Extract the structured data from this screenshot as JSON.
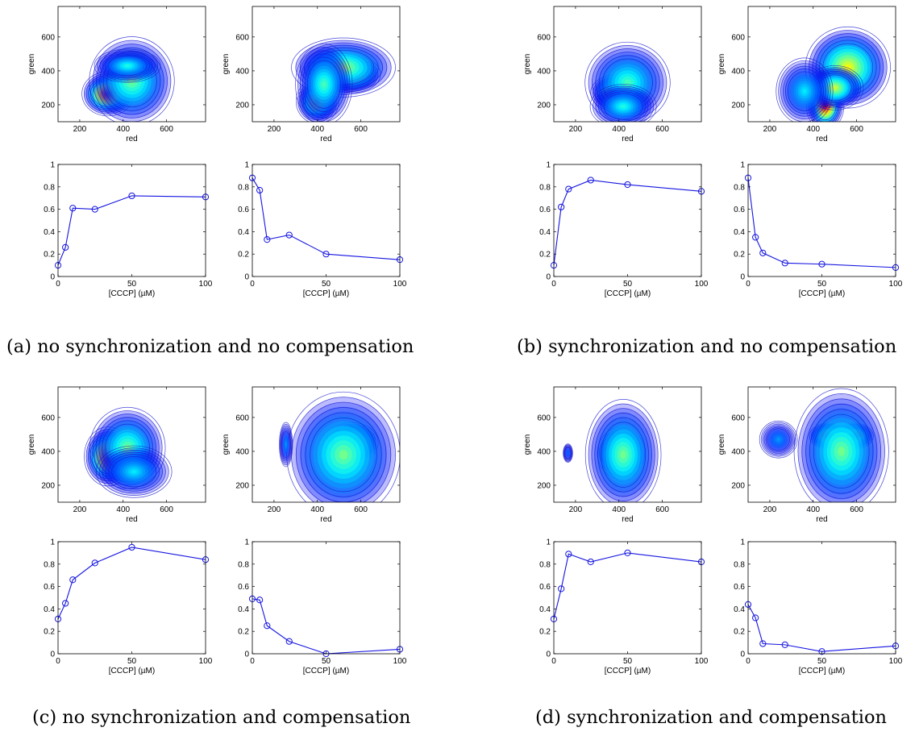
{
  "chart_data": [
    {
      "caption": "(a) no synchronization and no compensation",
      "panels": [
        {
          "type": "heatmap",
          "xlabel": "red",
          "ylabel": "green",
          "xticks": [
            200,
            400,
            600
          ],
          "yticks": [
            200,
            400,
            600
          ],
          "xlim": [
            100,
            780
          ],
          "ylim": [
            100,
            780
          ],
          "blobs": [
            {
              "x": 330,
              "y": 265,
              "sx": 55,
              "sy": 60,
              "a": 1.0
            },
            {
              "x": 440,
              "y": 340,
              "sx": 90,
              "sy": 120,
              "a": 0.45
            },
            {
              "x": 420,
              "y": 430,
              "sx": 70,
              "sy": 45,
              "a": 0.35
            }
          ]
        },
        {
          "type": "heatmap",
          "xlabel": "red",
          "ylabel": "green",
          "xticks": [
            200,
            400,
            600
          ],
          "yticks": [
            200,
            400,
            600
          ],
          "xlim": [
            100,
            780
          ],
          "ylim": [
            100,
            780
          ],
          "blobs": [
            {
              "x": 560,
              "y": 380,
              "sx": 60,
              "sy": 50,
              "a": 1.0
            },
            {
              "x": 400,
              "y": 220,
              "sx": 45,
              "sy": 60,
              "a": 0.75
            },
            {
              "x": 520,
              "y": 420,
              "sx": 110,
              "sy": 80,
              "a": 0.5
            },
            {
              "x": 430,
              "y": 320,
              "sx": 60,
              "sy": 110,
              "a": 0.4
            }
          ]
        },
        {
          "type": "line",
          "xlabel": "[CCCP] (µM)",
          "ylabel": "",
          "xticks": [
            0,
            50,
            100
          ],
          "yticks": [
            0,
            0.2,
            0.4,
            0.6,
            0.8,
            1
          ],
          "xlim": [
            0,
            100
          ],
          "ylim": [
            0,
            1
          ],
          "x": [
            0,
            5,
            10,
            25,
            50,
            100
          ],
          "y": [
            0.1,
            0.26,
            0.61,
            0.6,
            0.72,
            0.71
          ]
        },
        {
          "type": "line",
          "xlabel": "[CCCP] (µM)",
          "ylabel": "",
          "xticks": [
            0,
            50,
            100
          ],
          "yticks": [
            0,
            0.2,
            0.4,
            0.6,
            0.8,
            1
          ],
          "xlim": [
            0,
            100
          ],
          "ylim": [
            0,
            1
          ],
          "x": [
            0,
            5,
            10,
            25,
            50,
            100
          ],
          "y": [
            0.88,
            0.77,
            0.33,
            0.37,
            0.2,
            0.15
          ]
        }
      ]
    },
    {
      "caption": "(b) synchronization and no compensation",
      "panels": [
        {
          "type": "heatmap",
          "xlabel": "red",
          "ylabel": "green",
          "xticks": [
            200,
            400,
            600
          ],
          "yticks": [
            200,
            400,
            600
          ],
          "xlim": [
            100,
            780
          ],
          "ylim": [
            100,
            780
          ],
          "blobs": [
            {
              "x": 390,
              "y": 270,
              "sx": 55,
              "sy": 50,
              "a": 1.0
            },
            {
              "x": 440,
              "y": 330,
              "sx": 90,
              "sy": 110,
              "a": 0.4
            },
            {
              "x": 420,
              "y": 190,
              "sx": 70,
              "sy": 60,
              "a": 0.35
            }
          ]
        },
        {
          "type": "heatmap",
          "xlabel": "red",
          "ylabel": "green",
          "xticks": [
            200,
            400,
            600
          ],
          "yticks": [
            200,
            400,
            600
          ],
          "xlim": [
            100,
            780
          ],
          "ylim": [
            100,
            780
          ],
          "blobs": [
            {
              "x": 455,
              "y": 200,
              "sx": 40,
              "sy": 70,
              "a": 1.0
            },
            {
              "x": 560,
              "y": 420,
              "sx": 90,
              "sy": 110,
              "a": 0.6
            },
            {
              "x": 500,
              "y": 300,
              "sx": 60,
              "sy": 60,
              "a": 0.55
            },
            {
              "x": 360,
              "y": 280,
              "sx": 60,
              "sy": 90,
              "a": 0.3
            }
          ]
        },
        {
          "type": "line",
          "xlabel": "[CCCP] (µM)",
          "ylabel": "",
          "xticks": [
            0,
            50,
            100
          ],
          "yticks": [
            0,
            0.2,
            0.4,
            0.6,
            0.8,
            1
          ],
          "xlim": [
            0,
            100
          ],
          "ylim": [
            0,
            1
          ],
          "x": [
            0,
            5,
            10,
            25,
            50,
            100
          ],
          "y": [
            0.1,
            0.62,
            0.78,
            0.86,
            0.82,
            0.76
          ]
        },
        {
          "type": "line",
          "xlabel": "[CCCP] (µM)",
          "ylabel": "",
          "xticks": [
            0,
            50,
            100
          ],
          "yticks": [
            0,
            0.2,
            0.4,
            0.6,
            0.8,
            1
          ],
          "xlim": [
            0,
            100
          ],
          "ylim": [
            0,
            1
          ],
          "x": [
            0,
            5,
            10,
            25,
            50,
            100
          ],
          "y": [
            0.88,
            0.35,
            0.21,
            0.12,
            0.11,
            0.08
          ]
        }
      ]
    },
    {
      "caption": "(c) no synchronization and compensation",
      "panels": [
        {
          "type": "heatmap",
          "xlabel": "red",
          "ylabel": "green",
          "xticks": [
            200,
            400,
            600
          ],
          "yticks": [
            200,
            400,
            600
          ],
          "xlim": [
            100,
            780
          ],
          "ylim": [
            100,
            780
          ],
          "blobs": [
            {
              "x": 330,
              "y": 370,
              "sx": 50,
              "sy": 80,
              "a": 1.0
            },
            {
              "x": 420,
              "y": 420,
              "sx": 80,
              "sy": 110,
              "a": 0.45
            },
            {
              "x": 450,
              "y": 280,
              "sx": 80,
              "sy": 70,
              "a": 0.3
            }
          ]
        },
        {
          "type": "heatmap",
          "xlabel": "red",
          "ylabel": "green",
          "xticks": [
            200,
            400,
            600
          ],
          "yticks": [
            200,
            400,
            600
          ],
          "xlim": [
            100,
            780
          ],
          "ylim": [
            100,
            780
          ],
          "blobs": [
            {
              "x": 560,
              "y": 450,
              "sx": 55,
              "sy": 55,
              "a": 1.0
            },
            {
              "x": 520,
              "y": 380,
              "sx": 120,
              "sy": 170,
              "a": 0.45
            },
            {
              "x": 255,
              "y": 440,
              "sx": 14,
              "sy": 60,
              "a": 0.2
            }
          ]
        },
        {
          "type": "line",
          "xlabel": "[CCCP] (µM)",
          "ylabel": "",
          "xticks": [
            0,
            50,
            100
          ],
          "yticks": [
            0,
            0.2,
            0.4,
            0.6,
            0.8,
            1
          ],
          "xlim": [
            0,
            100
          ],
          "ylim": [
            0,
            1
          ],
          "x": [
            0,
            5,
            10,
            25,
            50,
            100
          ],
          "y": [
            0.31,
            0.45,
            0.66,
            0.81,
            0.95,
            0.84
          ]
        },
        {
          "type": "line",
          "xlabel": "[CCCP] (µM)",
          "ylabel": "",
          "xticks": [
            0,
            50,
            100
          ],
          "yticks": [
            0,
            0.2,
            0.4,
            0.6,
            0.8,
            1
          ],
          "xlim": [
            0,
            100
          ],
          "ylim": [
            0,
            1
          ],
          "x": [
            0,
            5,
            10,
            25,
            50,
            100
          ],
          "y": [
            0.49,
            0.48,
            0.25,
            0.11,
            0.0,
            0.04
          ]
        }
      ]
    },
    {
      "caption": "(d) synchronization and compensation",
      "panels": [
        {
          "type": "heatmap",
          "xlabel": "red",
          "ylabel": "green",
          "xticks": [
            200,
            400,
            600
          ],
          "yticks": [
            200,
            400,
            600
          ],
          "xlim": [
            100,
            780
          ],
          "ylim": [
            100,
            780
          ],
          "blobs": [
            {
              "x": 410,
              "y": 390,
              "sx": 50,
              "sy": 70,
              "a": 1.0
            },
            {
              "x": 420,
              "y": 380,
              "sx": 80,
              "sy": 150,
              "a": 0.45
            },
            {
              "x": 165,
              "y": 390,
              "sx": 10,
              "sy": 25,
              "a": 0.15
            }
          ]
        },
        {
          "type": "heatmap",
          "xlabel": "red",
          "ylabel": "green",
          "xticks": [
            200,
            400,
            600
          ],
          "yticks": [
            200,
            400,
            600
          ],
          "xlim": [
            100,
            780
          ],
          "ylim": [
            100,
            780
          ],
          "blobs": [
            {
              "x": 470,
              "y": 490,
              "sx": 40,
              "sy": 35,
              "a": 1.0
            },
            {
              "x": 590,
              "y": 490,
              "sx": 40,
              "sy": 35,
              "a": 1.0
            },
            {
              "x": 530,
              "y": 400,
              "sx": 100,
              "sy": 170,
              "a": 0.45
            },
            {
              "x": 240,
              "y": 470,
              "sx": 40,
              "sy": 50,
              "a": 0.2
            }
          ]
        },
        {
          "type": "line",
          "xlabel": "[CCCP] (µM)",
          "ylabel": "",
          "xticks": [
            0,
            50,
            100
          ],
          "yticks": [
            0,
            0.2,
            0.4,
            0.6,
            0.8,
            1
          ],
          "xlim": [
            0,
            100
          ],
          "ylim": [
            0,
            1
          ],
          "x": [
            0,
            5,
            10,
            25,
            50,
            100
          ],
          "y": [
            0.31,
            0.58,
            0.89,
            0.82,
            0.9,
            0.82
          ]
        },
        {
          "type": "line",
          "xlabel": "[CCCP] (µM)",
          "ylabel": "",
          "xticks": [
            0,
            50,
            100
          ],
          "yticks": [
            0,
            0.2,
            0.4,
            0.6,
            0.8,
            1
          ],
          "xlim": [
            0,
            100
          ],
          "ylim": [
            0,
            1
          ],
          "x": [
            0,
            5,
            10,
            25,
            50,
            100
          ],
          "y": [
            0.44,
            0.32,
            0.09,
            0.08,
            0.02,
            0.07
          ]
        }
      ]
    }
  ],
  "style": {
    "line_color": "#1515e0",
    "axis_color": "#000000"
  }
}
